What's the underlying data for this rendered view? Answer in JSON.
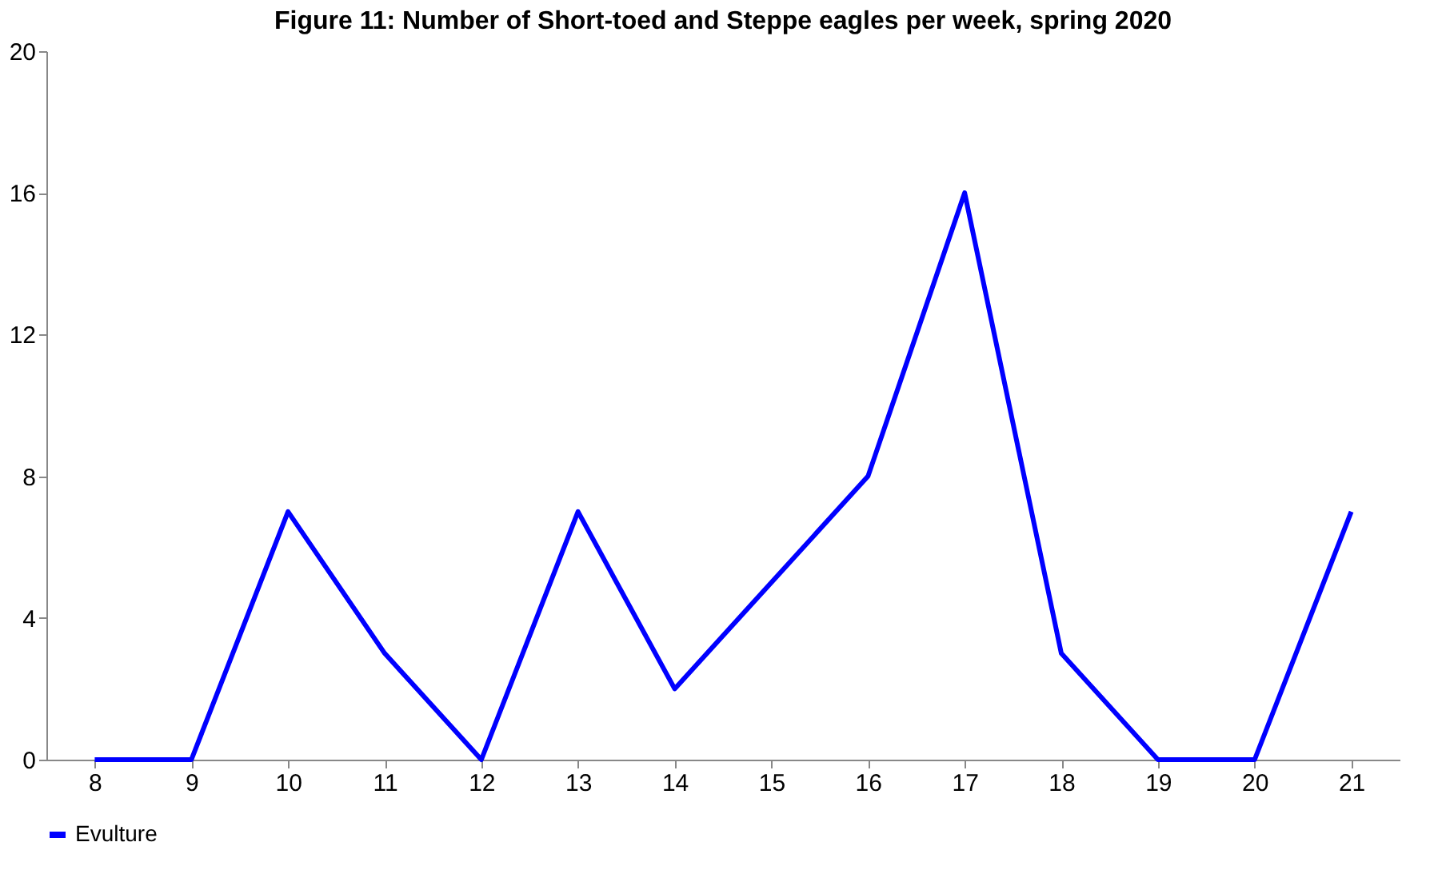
{
  "chart_data": {
    "type": "line",
    "title": "Figure 11: Number of Short-toed and Steppe eagles per week, spring 2020",
    "categories": [
      "8",
      "9",
      "10",
      "11",
      "12",
      "13",
      "14",
      "15",
      "16",
      "17",
      "18",
      "19",
      "20",
      "21"
    ],
    "series": [
      {
        "name": "Evulture",
        "color": "#0000ff",
        "values": [
          0,
          0,
          7,
          3,
          0,
          7,
          2,
          5,
          8,
          16,
          3,
          0,
          0,
          7
        ]
      }
    ],
    "ylim": [
      0,
      20
    ],
    "yticks": [
      0,
      4,
      8,
      12,
      16,
      20
    ],
    "grid": false,
    "legend": "bottom",
    "marker": "none",
    "line_style": "solid"
  }
}
